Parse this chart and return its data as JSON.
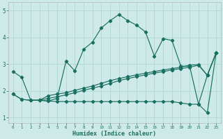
{
  "xlabel": "Humidex (Indice chaleur)",
  "bg_color": "#ceeae8",
  "line_color": "#1a7060",
  "grid_color": "#b0d8d4",
  "xlim": [
    -0.5,
    23.5
  ],
  "ylim": [
    0.8,
    5.3
  ],
  "yticks": [
    1,
    2,
    3,
    4,
    5
  ],
  "xticks": [
    0,
    1,
    2,
    3,
    4,
    5,
    6,
    7,
    8,
    9,
    10,
    11,
    12,
    13,
    14,
    15,
    16,
    17,
    18,
    19,
    20,
    21,
    22,
    23
  ],
  "series1_x": [
    0,
    1,
    2,
    3,
    4,
    5,
    6,
    7,
    8,
    9,
    10,
    11,
    12,
    13,
    14,
    15,
    16,
    17,
    18,
    19,
    20,
    21,
    22,
    23
  ],
  "series1_y": [
    2.72,
    2.5,
    1.65,
    1.65,
    1.62,
    1.72,
    3.1,
    2.75,
    3.55,
    3.82,
    4.35,
    4.62,
    4.85,
    4.62,
    4.45,
    4.2,
    3.3,
    3.95,
    3.88,
    2.92,
    2.92,
    1.5,
    1.18,
    3.42
  ],
  "series2_x": [
    0,
    1,
    2,
    3,
    4,
    5,
    6,
    7,
    8,
    9,
    10,
    11,
    12,
    13,
    14,
    15,
    16,
    17,
    18,
    19,
    20,
    21,
    22,
    23
  ],
  "series2_y": [
    1.88,
    1.68,
    1.65,
    1.65,
    1.82,
    1.88,
    1.93,
    2.02,
    2.1,
    2.18,
    2.28,
    2.38,
    2.46,
    2.53,
    2.6,
    2.66,
    2.72,
    2.78,
    2.83,
    2.88,
    2.96,
    2.98,
    2.58,
    3.42
  ],
  "series3_x": [
    0,
    1,
    2,
    3,
    4,
    5,
    6,
    7,
    8,
    9,
    10,
    11,
    12,
    13,
    14,
    15,
    16,
    17,
    18,
    19,
    20,
    21,
    22,
    23
  ],
  "series3_y": [
    1.88,
    1.68,
    1.65,
    1.65,
    1.62,
    1.6,
    1.6,
    1.6,
    1.6,
    1.6,
    1.6,
    1.6,
    1.6,
    1.6,
    1.6,
    1.6,
    1.6,
    1.6,
    1.6,
    1.55,
    1.5,
    1.5,
    2.58,
    3.42
  ],
  "series4_x": [
    3,
    4,
    5,
    6,
    7,
    8,
    9,
    10,
    11,
    12,
    13,
    14,
    15,
    16,
    17,
    18,
    19,
    20,
    21,
    22,
    23
  ],
  "series4_y": [
    1.65,
    1.72,
    1.78,
    1.85,
    1.93,
    2.02,
    2.1,
    2.18,
    2.28,
    2.38,
    2.46,
    2.53,
    2.6,
    2.66,
    2.72,
    2.78,
    2.83,
    2.88,
    2.96,
    2.58,
    3.42
  ]
}
